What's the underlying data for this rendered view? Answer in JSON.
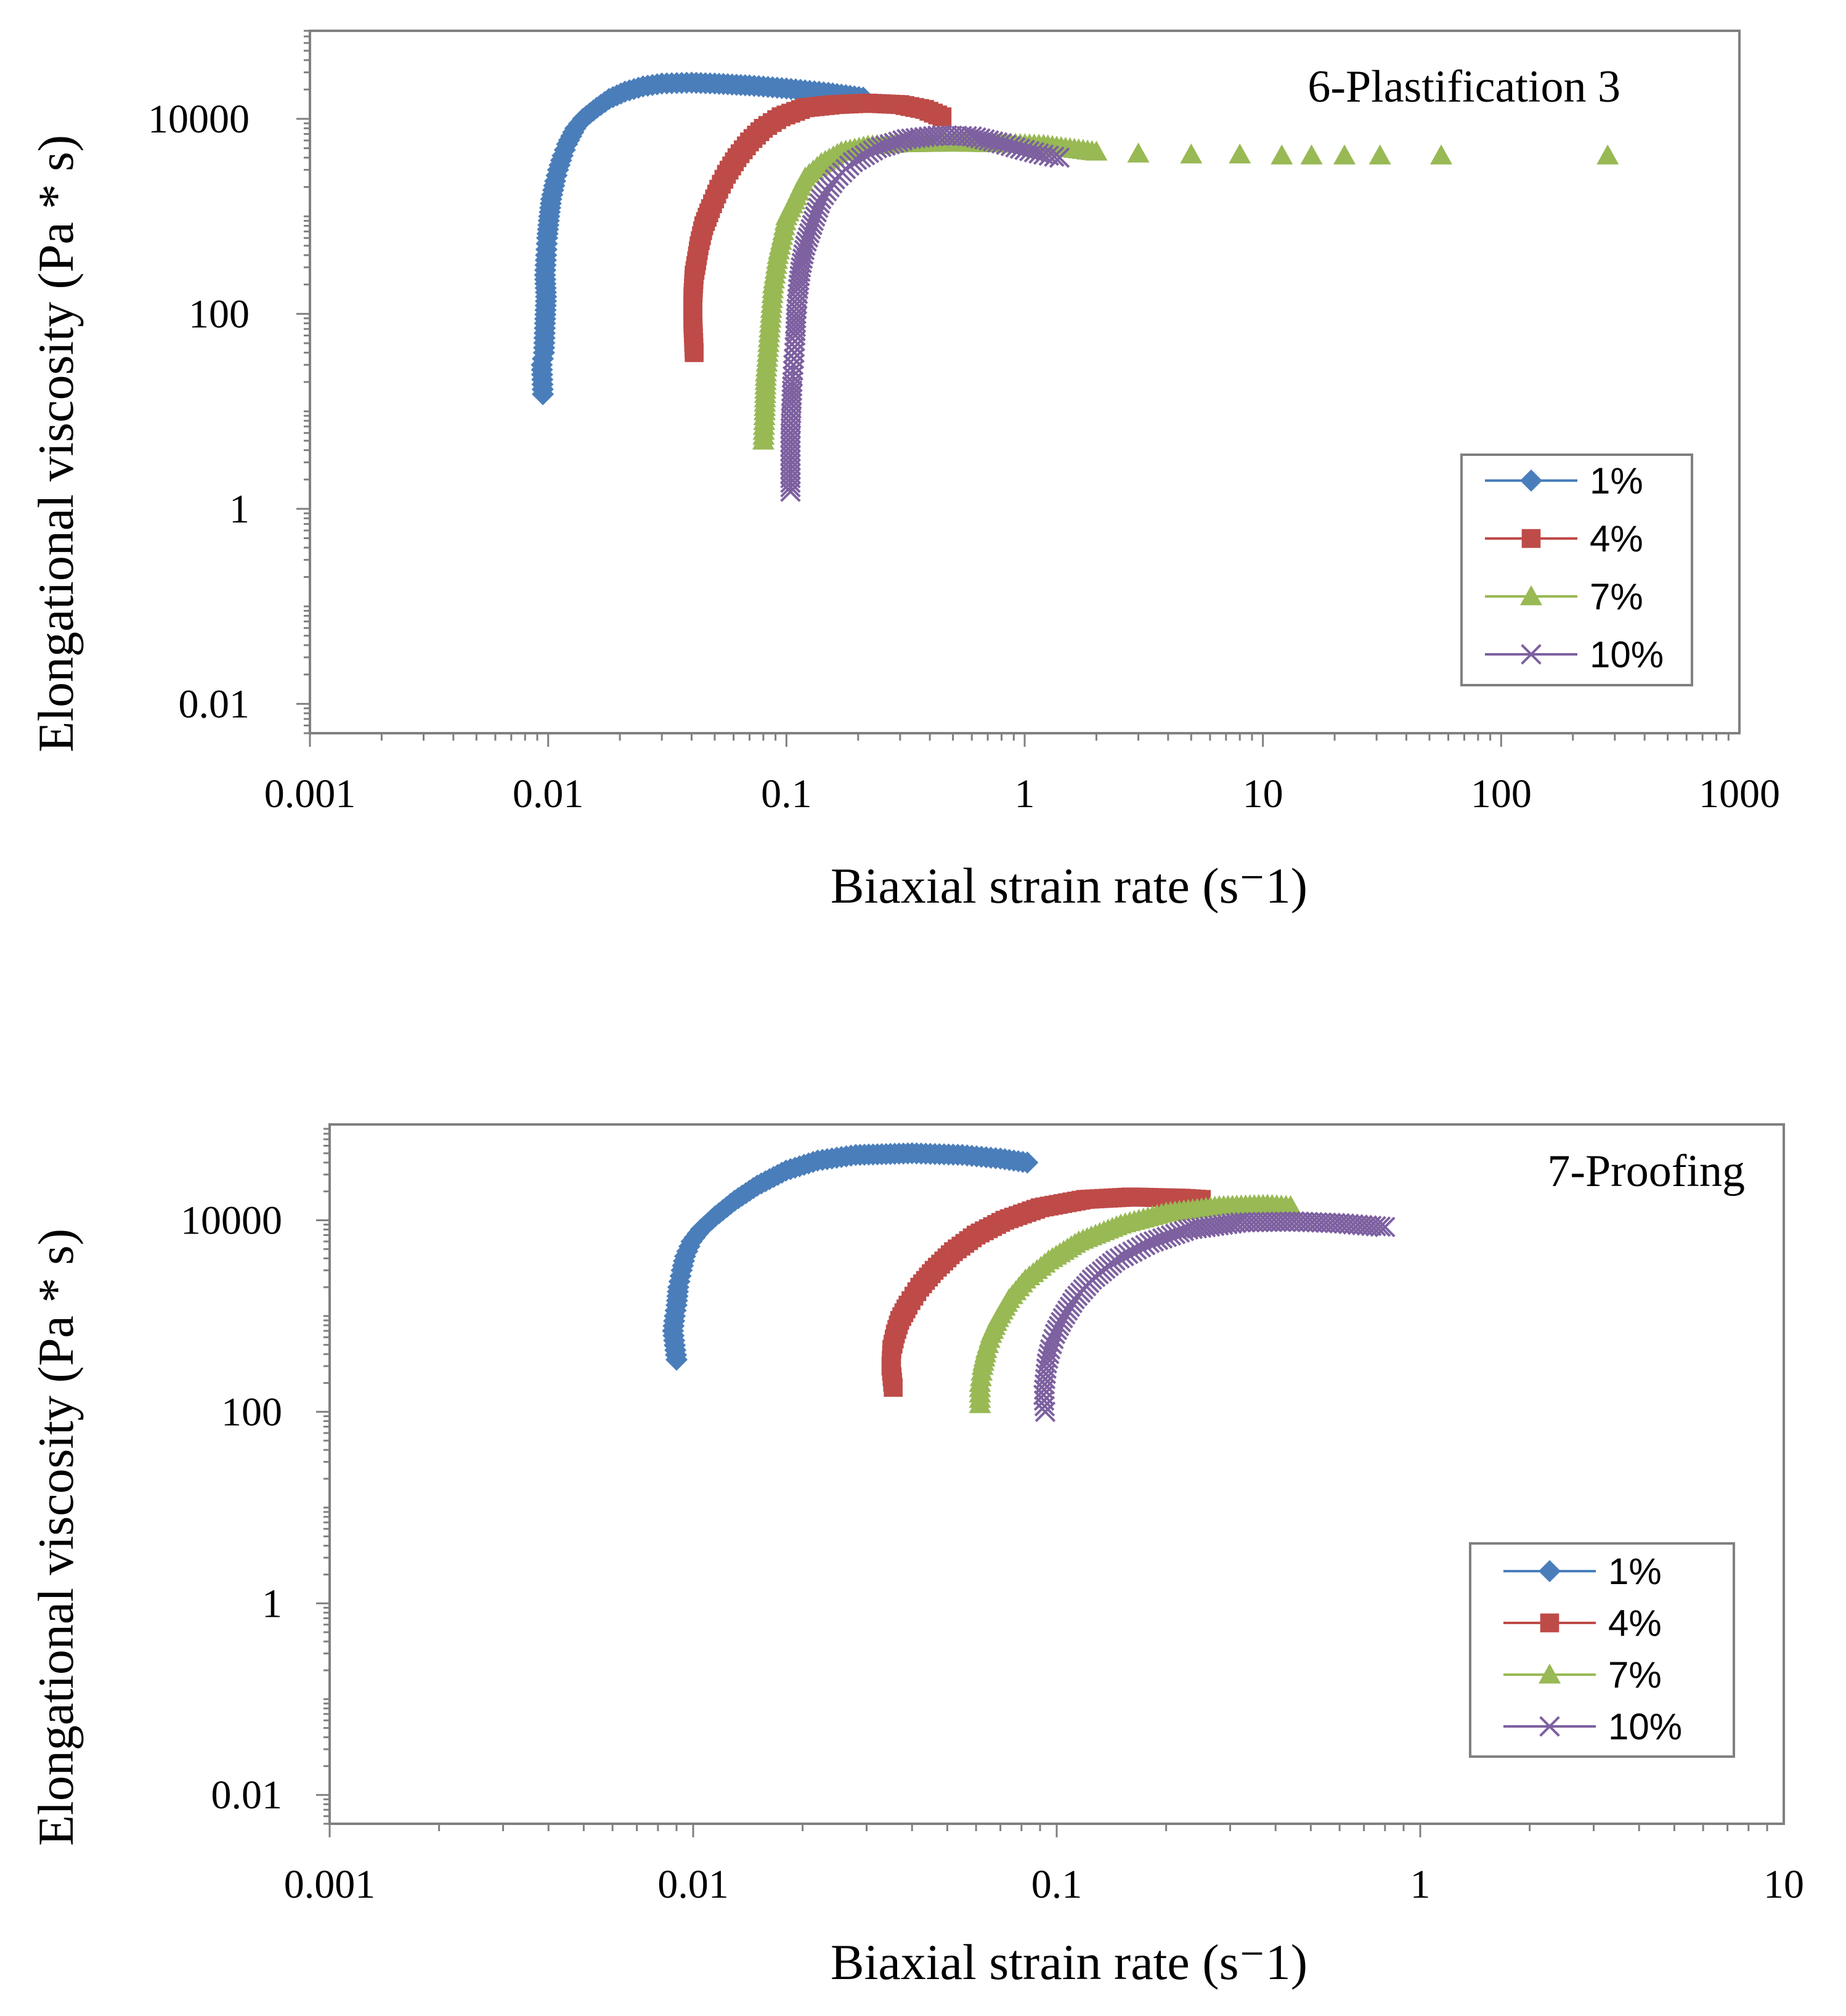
{
  "colors": {
    "axis": "#808080",
    "series_1": "#4A7EBB",
    "series_4": "#BE4B48",
    "series_7": "#98B954",
    "series_10": "#7D60A0",
    "text": "#000000"
  },
  "chart_data": [
    {
      "type": "scatter",
      "title": "6-Plastification 3",
      "xlabel": "Biaxial strain rate (s⁻1)",
      "ylabel": "Elongational viscosity (Pa * s)",
      "xscale": "log",
      "yscale": "log",
      "xlim": [
        0.001,
        1000
      ],
      "ylim": [
        0.005,
        80000
      ],
      "xticks": [
        0.001,
        0.01,
        0.1,
        1,
        10,
        100,
        1000
      ],
      "xtick_labels": [
        "0.001",
        "0.01",
        "0.1",
        "1",
        "10",
        "100",
        "1000"
      ],
      "yticks": [
        0.01,
        1,
        100,
        10000
      ],
      "ytick_labels": [
        "0.01",
        "1",
        "100",
        "10000"
      ],
      "legend_position": "lower-right",
      "series": [
        {
          "name": "1%",
          "marker": "diamond",
          "color_key": "series_1",
          "points": [
            [
              0.0095,
              15
            ],
            [
              0.0094,
              30
            ],
            [
              0.0096,
              40
            ],
            [
              0.0097,
              80
            ],
            [
              0.0098,
              150
            ],
            [
              0.0097,
              250
            ],
            [
              0.0098,
              400
            ],
            [
              0.0099,
              600
            ],
            [
              0.0101,
              1000
            ],
            [
              0.0103,
              1500
            ],
            [
              0.0107,
              2300
            ],
            [
              0.011,
              3000
            ],
            [
              0.0115,
              4200
            ],
            [
              0.012,
              5500
            ],
            [
              0.013,
              8000
            ],
            [
              0.014,
              10000
            ],
            [
              0.016,
              13000
            ],
            [
              0.018,
              16000
            ],
            [
              0.021,
              19000
            ],
            [
              0.025,
              21500
            ],
            [
              0.03,
              23000
            ],
            [
              0.04,
              23500
            ],
            [
              0.05,
              23000
            ],
            [
              0.07,
              22000
            ],
            [
              0.1,
              20500
            ],
            [
              0.15,
              18500
            ],
            [
              0.21,
              16500
            ]
          ]
        },
        {
          "name": "4%",
          "marker": "square",
          "color_key": "series_4",
          "points": [
            [
              0.041,
              40
            ],
            [
              0.0405,
              80
            ],
            [
              0.0405,
              150
            ],
            [
              0.041,
              250
            ],
            [
              0.042,
              350
            ],
            [
              0.043,
              500
            ],
            [
              0.045,
              800
            ],
            [
              0.048,
              1200
            ],
            [
              0.052,
              1900
            ],
            [
              0.056,
              2700
            ],
            [
              0.062,
              4000
            ],
            [
              0.07,
              5800
            ],
            [
              0.08,
              8000
            ],
            [
              0.095,
              10500
            ],
            [
              0.12,
              13000
            ],
            [
              0.16,
              14000
            ],
            [
              0.22,
              14500
            ],
            [
              0.3,
              14000
            ],
            [
              0.38,
              12500
            ],
            [
              0.45,
              10500
            ]
          ]
        },
        {
          "name": "7%",
          "marker": "triangle",
          "color_key": "series_7",
          "points": [
            [
              0.08,
              5
            ],
            [
              0.081,
              10
            ],
            [
              0.082,
              25
            ],
            [
              0.084,
              50
            ],
            [
              0.086,
              100
            ],
            [
              0.088,
              200
            ],
            [
              0.092,
              400
            ],
            [
              0.097,
              700
            ],
            [
              0.1,
              1000
            ],
            [
              0.11,
              1600
            ],
            [
              0.12,
              2500
            ],
            [
              0.14,
              3500
            ],
            [
              0.17,
              4600
            ],
            [
              0.22,
              5300
            ],
            [
              0.3,
              5600
            ],
            [
              0.5,
              5700
            ],
            [
              0.8,
              5600
            ],
            [
              1.2,
              5400
            ],
            [
              2,
              4600
            ],
            [
              3,
              4400
            ],
            [
              5,
              4300
            ],
            [
              8,
              4300
            ],
            [
              12,
              4200
            ],
            [
              16,
              4200
            ],
            [
              22,
              4200
            ],
            [
              31,
              4200
            ],
            [
              56,
              4200
            ],
            [
              280,
              4200
            ]
          ]
        },
        {
          "name": "10%",
          "marker": "x",
          "color_key": "series_10",
          "points": [
            [
              0.104,
              1.5
            ],
            [
              0.104,
              6
            ],
            [
              0.105,
              12
            ],
            [
              0.106,
              20
            ],
            [
              0.107,
              30
            ],
            [
              0.108,
              40
            ],
            [
              0.109,
              60
            ],
            [
              0.11,
              100
            ],
            [
              0.112,
              180
            ],
            [
              0.115,
              300
            ],
            [
              0.12,
              500
            ],
            [
              0.13,
              900
            ],
            [
              0.14,
              1500
            ],
            [
              0.16,
              2400
            ],
            [
              0.19,
              3600
            ],
            [
              0.24,
              5000
            ],
            [
              0.32,
              6200
            ],
            [
              0.45,
              6800
            ],
            [
              0.6,
              6600
            ],
            [
              0.8,
              5600
            ],
            [
              1,
              4800
            ],
            [
              1.2,
              4300
            ],
            [
              1.4,
              4000
            ]
          ]
        }
      ]
    },
    {
      "type": "scatter",
      "title": "7-Proofing",
      "xlabel": "Biaxial strain rate (s⁻1)",
      "ylabel": "Elongational viscosity (Pa * s)",
      "xscale": "log",
      "yscale": "log",
      "xlim": [
        0.001,
        10
      ],
      "ylim": [
        0.005,
        100000
      ],
      "xticks": [
        0.001,
        0.01,
        0.1,
        1,
        10
      ],
      "xtick_labels": [
        "0.001",
        "0.01",
        "0.1",
        "1",
        "10"
      ],
      "yticks": [
        0.01,
        1,
        100,
        10000
      ],
      "ytick_labels": [
        "0.01",
        "1",
        "100",
        "10000"
      ],
      "legend_position": "lower-right",
      "series": [
        {
          "name": "1%",
          "marker": "diamond",
          "color_key": "series_1",
          "points": [
            [
              0.009,
              350
            ],
            [
              0.0088,
              700
            ],
            [
              0.0089,
              1000
            ],
            [
              0.009,
              1300
            ],
            [
              0.0091,
              2000
            ],
            [
              0.0093,
              3000
            ],
            [
              0.0095,
              4200
            ],
            [
              0.0099,
              6000
            ],
            [
              0.0105,
              8000
            ],
            [
              0.0115,
              11000
            ],
            [
              0.013,
              16000
            ],
            [
              0.015,
              23000
            ],
            [
              0.018,
              33000
            ],
            [
              0.022,
              42000
            ],
            [
              0.028,
              48000
            ],
            [
              0.04,
              50000
            ],
            [
              0.055,
              48000
            ],
            [
              0.07,
              44000
            ],
            [
              0.083,
              40000
            ]
          ]
        },
        {
          "name": "4%",
          "marker": "square",
          "color_key": "series_4",
          "points": [
            [
              0.0355,
              180
            ],
            [
              0.035,
              300
            ],
            [
              0.0352,
              450
            ],
            [
              0.036,
              650
            ],
            [
              0.037,
              900
            ],
            [
              0.039,
              1300
            ],
            [
              0.042,
              2000
            ],
            [
              0.046,
              3000
            ],
            [
              0.052,
              4700
            ],
            [
              0.06,
              7000
            ],
            [
              0.072,
              10000
            ],
            [
              0.09,
              13500
            ],
            [
              0.12,
              16500
            ],
            [
              0.16,
              17500
            ],
            [
              0.22,
              17000
            ],
            [
              0.25,
              16500
            ]
          ]
        },
        {
          "name": "7%",
          "marker": "triangle",
          "color_key": "series_7",
          "points": [
            [
              0.0615,
              120
            ],
            [
              0.0615,
              200
            ],
            [
              0.0625,
              300
            ],
            [
              0.064,
              450
            ],
            [
              0.066,
              650
            ],
            [
              0.069,
              950
            ],
            [
              0.074,
              1500
            ],
            [
              0.082,
              2400
            ],
            [
              0.095,
              3800
            ],
            [
              0.115,
              6000
            ],
            [
              0.15,
              9000
            ],
            [
              0.2,
              12000
            ],
            [
              0.28,
              14000
            ],
            [
              0.38,
              14500
            ],
            [
              0.44,
              14000
            ]
          ]
        },
        {
          "name": "10%",
          "marker": "x",
          "color_key": "series_10",
          "points": [
            [
              0.093,
              100
            ],
            [
              0.092,
              150
            ],
            [
              0.093,
              220
            ],
            [
              0.094,
              320
            ],
            [
              0.096,
              450
            ],
            [
              0.099,
              650
            ],
            [
              0.104,
              950
            ],
            [
              0.112,
              1500
            ],
            [
              0.125,
              2400
            ],
            [
              0.145,
              3800
            ],
            [
              0.18,
              5800
            ],
            [
              0.23,
              8000
            ],
            [
              0.32,
              9500
            ],
            [
              0.45,
              9700
            ],
            [
              0.6,
              9300
            ],
            [
              0.8,
              8500
            ]
          ]
        }
      ]
    }
  ]
}
